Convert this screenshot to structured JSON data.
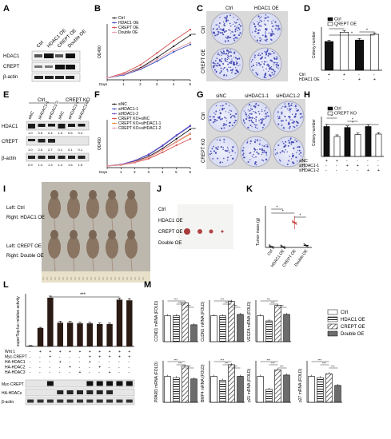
{
  "panel_letters": {
    "A": "A",
    "B": "B",
    "C": "C",
    "D": "D",
    "E": "E",
    "F": "F",
    "G": "G",
    "H": "H",
    "I": "I",
    "J": "J",
    "K": "K",
    "L": "L",
    "M": "M"
  },
  "panel_a": {
    "columns": [
      "Ctrl",
      "HDAC1 OE",
      "CREPT OE",
      "Double OE"
    ],
    "rows": [
      "HDAC1",
      "CREPT",
      "β-actin"
    ]
  },
  "panel_c": {
    "col_labels": [
      "Ctrl",
      "HDAC1 OE"
    ],
    "row_labels": [
      "Ctrl",
      "CREPT OE"
    ]
  },
  "panel_e": {
    "group_labels": [
      "Ctrl",
      "CREPT KO"
    ],
    "columns": [
      "siNC",
      "siHDAC1-1",
      "siHDAC1-2",
      "siNC",
      "siHDAC1-1",
      "siHDAC1-2"
    ],
    "rows": [
      "HDAC1",
      "CREPT",
      "β-actin"
    ],
    "hdac1_values": [
      "1.0",
      "0.5",
      "0.4",
      "1.0",
      "0.5",
      "0.4"
    ],
    "crept_values": [
      "1.0",
      "2.5",
      "2.7",
      "0.1",
      "0.1",
      "0.1"
    ],
    "actin_values": [
      "0.9",
      "1.4",
      "1.3",
      "1.4",
      "1.5",
      "1.5"
    ]
  },
  "panel_g": {
    "col_labels": [
      "siNC",
      "siHDAC1-1",
      "siHDAC1-2"
    ],
    "row_labels": [
      "Ctrl",
      "CREPT KO"
    ]
  },
  "panel_i": {
    "text1": "Left: Ctrl",
    "text2": "Right: HDAC1 OE",
    "text3": "Left: CREPT OE",
    "text4": "Right: Double OE"
  },
  "panel_j": {
    "labels": [
      "Ctrl",
      "HDAC1 OE",
      "CREPT OE",
      "Double OE"
    ]
  },
  "panel_l": {
    "ylabel": "superTop-luc relative activity",
    "sig": "***",
    "row_labels": [
      "Wnt 1",
      "Myc-CREPT",
      "HA-HDAC1",
      "HA-HDAC2",
      "HA-HDAC3"
    ],
    "signs": [
      [
        "-",
        "+",
        "+",
        "+",
        "+",
        "+",
        "+",
        "+",
        "+",
        "+",
        "+"
      ],
      [
        "-",
        "-",
        "+",
        "-",
        "-",
        "-",
        "+",
        "+",
        "+",
        "+",
        "+"
      ],
      [
        "-",
        "-",
        "-",
        "+",
        "-",
        "-",
        "+",
        "-",
        "-",
        "-",
        "-"
      ],
      [
        "-",
        "-",
        "-",
        "-",
        "+",
        "-",
        "-",
        "+",
        "-",
        "-",
        "-"
      ],
      [
        "-",
        "-",
        "-",
        "-",
        "-",
        "+",
        "-",
        "-",
        "+",
        "-",
        "-"
      ]
    ],
    "blot_labels": [
      "Myc-CREPT",
      "HA-HDACs",
      "β-actin"
    ]
  },
  "panel_m": {
    "legend": [
      "Ctrl",
      "HDAC1 OE",
      "CREPT OE",
      "Double OE"
    ],
    "ylabels": [
      "CCND1 mRNA (FOLD)",
      "CLDN1 mRNA (FOLD)",
      "VEGFA mRNA (FOLD)",
      "PPARD mRNA (FOLD)",
      "BMP4 mRNA (FOLD)",
      "p21 mRNA (FOLD)",
      "p27 mRNA (FOLD)"
    ]
  },
  "chart_data": [
    {
      "type": "line",
      "panel": "B",
      "ylabel": "OD490",
      "xlabel": "Days",
      "x": [
        0,
        1,
        2,
        3,
        4,
        5
      ],
      "ylim": [
        0,
        1.5
      ],
      "series": [
        {
          "name": "Ctrl",
          "values": [
            0.05,
            0.15,
            0.32,
            0.6,
            0.9,
            1.2
          ],
          "color": "#1a1a1a"
        },
        {
          "name": "HDAC1 OE",
          "values": [
            0.05,
            0.13,
            0.28,
            0.5,
            0.75,
            0.95
          ],
          "color": "#3b4fb8"
        },
        {
          "name": "CREPT OE",
          "values": [
            0.05,
            0.18,
            0.4,
            0.72,
            1.05,
            1.35
          ],
          "color": "#d64f4f"
        },
        {
          "name": "Double OE",
          "values": [
            0.05,
            0.15,
            0.3,
            0.55,
            0.8,
            1.0
          ],
          "color": "#e89aa8"
        }
      ],
      "sig": "***"
    },
    {
      "type": "bar",
      "panel": "D",
      "ylabel": "Colony number",
      "ylim": [
        0,
        300
      ],
      "legend": [
        "Ctrl",
        "CREPT OE"
      ],
      "values": [
        200,
        265,
        210,
        250
      ],
      "errors": [
        8,
        12,
        10,
        10
      ],
      "fills": [
        "#111111",
        "#ffffff",
        "#111111",
        "#ffffff"
      ],
      "xrows": [
        {
          "label": "Ctrl",
          "signs": [
            "+",
            "+",
            "-",
            "-"
          ]
        },
        {
          "label": "HDAC1 OE",
          "signs": [
            "-",
            "-",
            "+",
            "+"
          ]
        }
      ],
      "sig": [
        "*",
        "*",
        "*"
      ]
    },
    {
      "type": "line",
      "panel": "F",
      "ylabel": "OD490",
      "xlabel": "Days",
      "x": [
        0,
        1,
        2,
        3,
        4,
        5,
        6
      ],
      "ylim": [
        0,
        1.5
      ],
      "series": [
        {
          "name": "siNC",
          "values": [
            0.05,
            0.1,
            0.2,
            0.35,
            0.6,
            0.9,
            1.2
          ],
          "color": "#1a1a1a"
        },
        {
          "name": "siHDAC1-1",
          "values": [
            0.05,
            0.1,
            0.22,
            0.4,
            0.68,
            1.0,
            1.3
          ],
          "color": "#3b4fb8"
        },
        {
          "name": "siHDAC1-2",
          "values": [
            0.05,
            0.1,
            0.22,
            0.42,
            0.7,
            1.02,
            1.32
          ],
          "color": "#6a4fc9"
        },
        {
          "name": "CREPT KO+siNC",
          "values": [
            0.05,
            0.08,
            0.16,
            0.28,
            0.48,
            0.7,
            0.9
          ],
          "color": "#d64f4f"
        },
        {
          "name": "CREPT KO+siHDAC1-1",
          "values": [
            0.05,
            0.09,
            0.18,
            0.32,
            0.55,
            0.8,
            1.05
          ],
          "color": "#e28a3b"
        },
        {
          "name": "CREPT KO+siHDAC1-2",
          "values": [
            0.05,
            0.09,
            0.18,
            0.33,
            0.56,
            0.82,
            1.08
          ],
          "color": "#e89aa8"
        }
      ],
      "sig": "***"
    },
    {
      "type": "bar",
      "panel": "H",
      "ylabel": "Colony number",
      "ylim": [
        0,
        200
      ],
      "legend": [
        "Ctrl",
        "CREPT KO"
      ],
      "values": [
        150,
        100,
        145,
        110,
        150,
        112
      ],
      "errors": [
        10,
        8,
        8,
        7,
        9,
        7
      ],
      "fills": [
        "#111111",
        "#ffffff",
        "#111111",
        "#ffffff",
        "#111111",
        "#ffffff"
      ],
      "xrows": [
        {
          "label": "siNC",
          "signs": [
            "+",
            "+",
            "-",
            "-",
            "-",
            "-"
          ]
        },
        {
          "label": "siHDAC1-1",
          "signs": [
            "-",
            "-",
            "+",
            "+",
            "-",
            "-"
          ]
        },
        {
          "label": "siHDAC1-2",
          "signs": [
            "-",
            "-",
            "-",
            "-",
            "+",
            "+"
          ]
        }
      ],
      "sig": [
        "*",
        "*",
        "*"
      ]
    },
    {
      "type": "scatter",
      "panel": "K",
      "ylabel": "Tumor mass (g)",
      "ylim": [
        0,
        0.25
      ],
      "categories": [
        "Ctrl",
        "HDAC1 OE",
        "CREPT OE",
        "Double OE"
      ],
      "values": [
        0.005,
        0.004,
        0.15,
        0.012
      ],
      "errors": [
        0.003,
        0.002,
        0.04,
        0.006
      ],
      "sig": [
        "*",
        "*",
        "*"
      ]
    },
    {
      "type": "bar",
      "panel": "L",
      "ylabel": "superTop-luc relative activity",
      "ylim": [
        0,
        40
      ],
      "values": [
        0.5,
        14,
        37,
        18,
        18,
        17.5,
        17.5,
        17,
        17,
        35.5,
        35
      ],
      "errors": [
        0.2,
        0.5,
        1.2,
        1.2,
        1,
        0.8,
        0.8,
        0.8,
        0.7,
        1.2,
        1.2
      ]
    },
    {
      "type": "bar",
      "panel": "M",
      "ylim": [
        0,
        1.6
      ],
      "legend": [
        "Ctrl",
        "HDAC1 OE",
        "CREPT OE",
        "Double OE"
      ],
      "groups": [
        {
          "gene": "CCND1",
          "values": [
            1.0,
            1.0,
            1.5,
            0.65
          ]
        },
        {
          "gene": "CLDN1",
          "values": [
            1.0,
            1.0,
            1.55,
            1.05
          ]
        },
        {
          "gene": "VEGFA",
          "values": [
            1.0,
            0.8,
            1.4,
            1.05
          ]
        },
        {
          "gene": "PPARD",
          "values": [
            1.0,
            0.95,
            1.4,
            0.9
          ]
        },
        {
          "gene": "BMP4",
          "values": [
            1.0,
            0.85,
            1.45,
            1.0
          ]
        },
        {
          "gene": "p21",
          "values": [
            1.0,
            0.5,
            1.25,
            1.05
          ]
        },
        {
          "gene": "p27",
          "values": [
            1.0,
            0.95,
            1.1,
            0.65
          ]
        }
      ]
    }
  ]
}
